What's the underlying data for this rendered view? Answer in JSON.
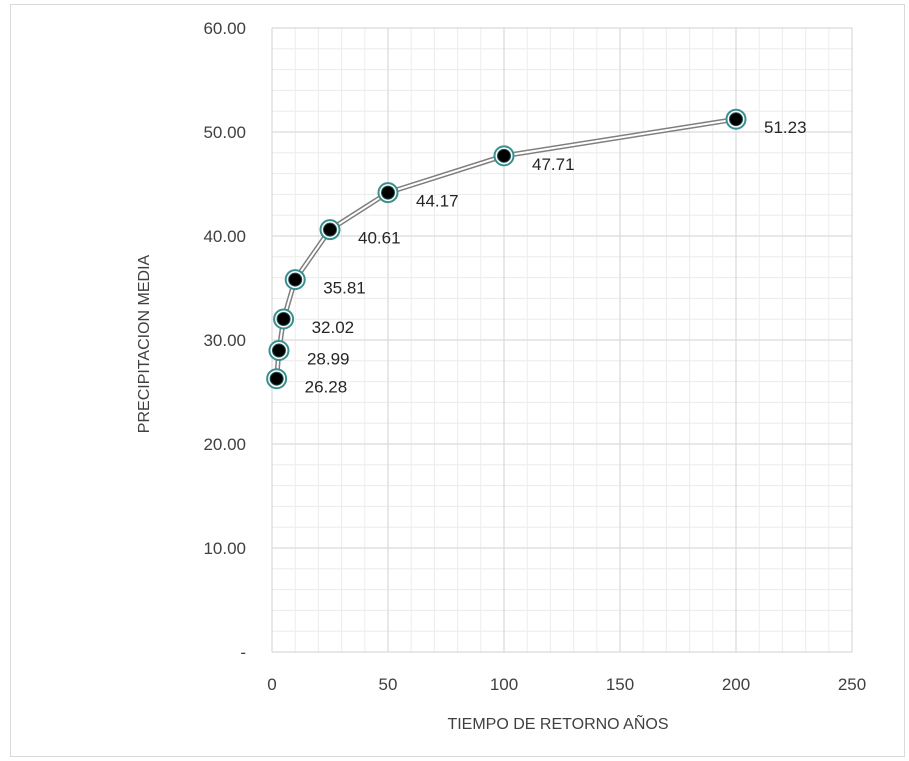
{
  "chart_data": {
    "type": "line",
    "x": [
      2,
      3,
      5,
      10,
      25,
      50,
      100,
      200
    ],
    "series": [
      {
        "values": [
          26.28,
          28.99,
          32.02,
          35.81,
          40.61,
          44.17,
          47.71,
          51.23
        ]
      }
    ],
    "data_labels": [
      "26.28",
      "28.99",
      "32.02",
      "35.81",
      "40.61",
      "44.17",
      "47.71",
      "51.23"
    ],
    "xlabel": "TIEMPO DE RETORNO AÑOS",
    "ylabel": "PRECIPITACION MEDIA",
    "xlim": [
      0,
      250
    ],
    "ylim": [
      0,
      60
    ],
    "x_ticks": [
      0,
      50,
      100,
      150,
      200,
      250
    ],
    "x_tick_labels": [
      "0",
      "50",
      "100",
      "150",
      "200",
      "250"
    ],
    "y_ticks": [
      0,
      10,
      20,
      30,
      40,
      50,
      60
    ],
    "y_tick_labels": [
      "-",
      "10.00",
      "20.00",
      "30.00",
      "40.00",
      "50.00",
      "60.00"
    ],
    "grid": true,
    "minor_grid": true,
    "legend": "none",
    "colors": {
      "line": "#7f7f7f",
      "marker_fill": "#000000",
      "marker_ring": "#3a8f8f",
      "major_grid": "#d9d9d9",
      "minor_grid": "#ececec"
    }
  }
}
